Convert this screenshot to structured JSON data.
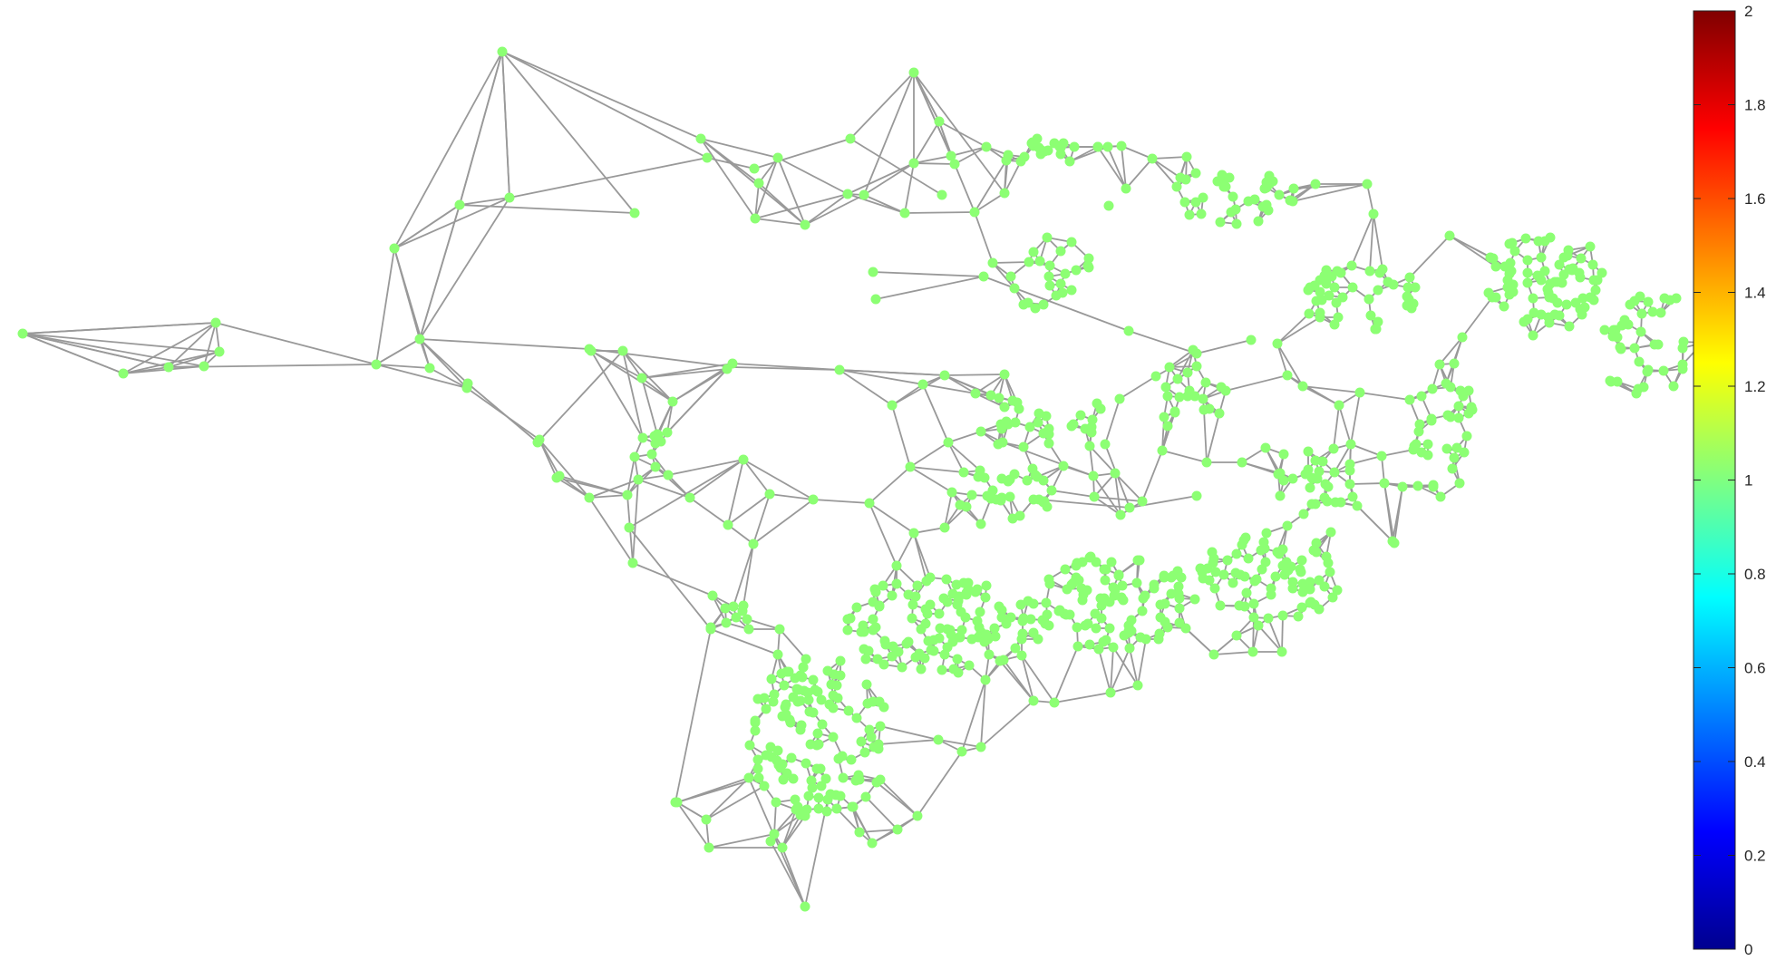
{
  "graph": {
    "node_color": "#8cff73",
    "edge_color": "#999999",
    "node_value": 1
  },
  "colorbar": {
    "colormap": "jet",
    "min": 0,
    "max": 2,
    "tick_labels": [
      "0",
      "0.2",
      "0.4",
      "0.6",
      "0.8",
      "1",
      "1.2",
      "1.4",
      "1.6",
      "1.8",
      "2"
    ]
  }
}
